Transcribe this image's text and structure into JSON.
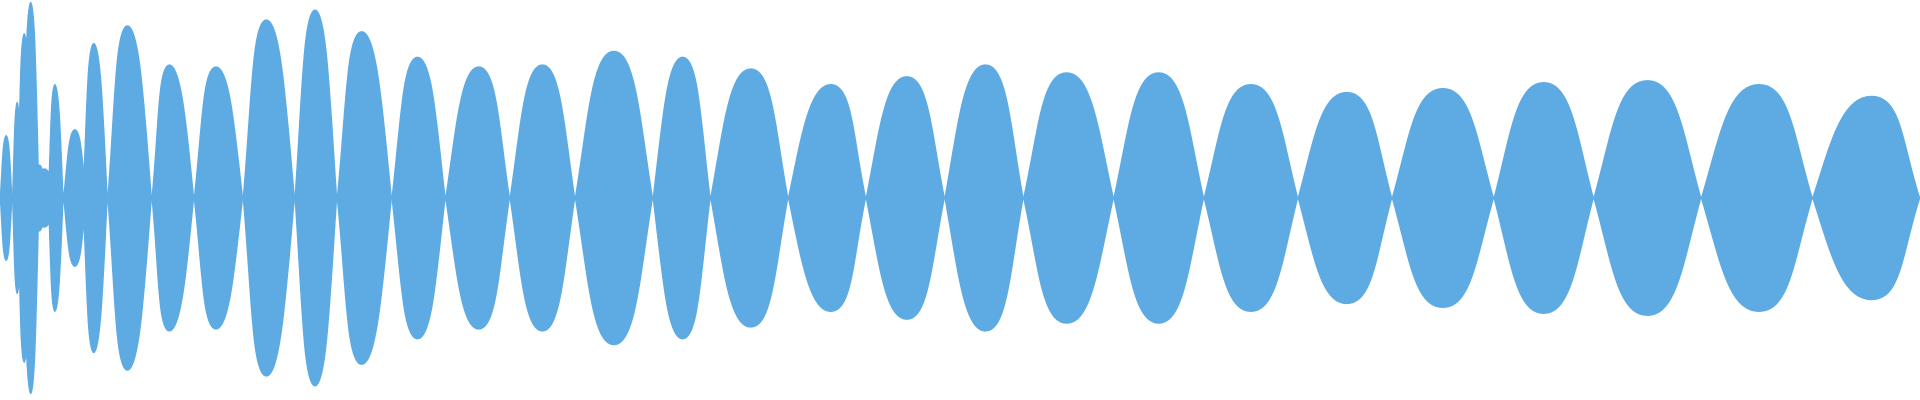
{
  "chart_data": {
    "type": "area",
    "title": "",
    "xlabel": "",
    "ylabel": "",
    "grid": false,
    "legend": "none",
    "ylim": [
      -1,
      1
    ],
    "xlim": [
      0,
      1
    ],
    "fill_color": "#5dabe2",
    "symmetric": true,
    "lobes": [
      {
        "x0": 0.0,
        "x1": 0.0064,
        "amp": 0.32,
        "peak": 0.5
      },
      {
        "x0": 0.0064,
        "x1": 0.0115,
        "amp": 0.49,
        "peak": 0.5
      },
      {
        "x0": 0.0115,
        "x1": 0.0205,
        "amp": 1.0,
        "peak": 0.5
      },
      {
        "x0": 0.0205,
        "x1": 0.019,
        "amp": 0.0,
        "peak": 0.5
      },
      {
        "x0": 0.009,
        "x1": 0.017,
        "amp": 0.84,
        "peak": 0.45
      },
      {
        "x0": 0.017,
        "x1": 0.024,
        "amp": 0.17,
        "peak": 0.5
      },
      {
        "x0": 0.017,
        "x1": 0.029,
        "amp": 0.15,
        "peak": 0.5
      },
      {
        "x0": 0.019,
        "x1": 0.03,
        "amp": 0.08,
        "peak": 0.5
      },
      {
        "x0": 0.025,
        "x1": 0.033,
        "amp": 0.58,
        "peak": 0.45
      },
      {
        "x0": 0.033,
        "x1": 0.045,
        "amp": 0.35,
        "peak": 0.5
      },
      {
        "x0": 0.043,
        "x1": 0.056,
        "amp": 0.79,
        "peak": 0.45
      },
      {
        "x0": 0.056,
        "x1": 0.079,
        "amp": 0.88,
        "peak": 0.45
      },
      {
        "x0": 0.079,
        "x1": 0.101,
        "amp": 0.68,
        "peak": 0.42
      },
      {
        "x0": 0.101,
        "x1": 0.1265,
        "amp": 0.67,
        "peak": 0.45
      },
      {
        "x0": 0.1265,
        "x1": 0.1535,
        "amp": 0.91,
        "peak": 0.45
      },
      {
        "x0": 0.1535,
        "x1": 0.1755,
        "amp": 0.96,
        "peak": 0.48
      },
      {
        "x0": 0.1755,
        "x1": 0.204,
        "amp": 0.85,
        "peak": 0.45
      },
      {
        "x0": 0.204,
        "x1": 0.232,
        "amp": 0.72,
        "peak": 0.48
      },
      {
        "x0": 0.232,
        "x1": 0.2655,
        "amp": 0.67,
        "peak": 0.52
      },
      {
        "x0": 0.2655,
        "x1": 0.2995,
        "amp": 0.68,
        "peak": 0.5
      },
      {
        "x0": 0.2995,
        "x1": 0.34,
        "amp": 0.75,
        "peak": 0.5
      },
      {
        "x0": 0.34,
        "x1": 0.37,
        "amp": 0.72,
        "peak": 0.52
      },
      {
        "x0": 0.37,
        "x1": 0.4105,
        "amp": 0.66,
        "peak": 0.52
      },
      {
        "x0": 0.4105,
        "x1": 0.451,
        "amp": 0.58,
        "peak": 0.55
      },
      {
        "x0": 0.451,
        "x1": 0.492,
        "amp": 0.62,
        "peak": 0.52
      },
      {
        "x0": 0.492,
        "x1": 0.533,
        "amp": 0.68,
        "peak": 0.52
      },
      {
        "x0": 0.533,
        "x1": 0.58,
        "amp": 0.64,
        "peak": 0.48
      },
      {
        "x0": 0.58,
        "x1": 0.627,
        "amp": 0.64,
        "peak": 0.5
      },
      {
        "x0": 0.627,
        "x1": 0.676,
        "amp": 0.58,
        "peak": 0.5
      },
      {
        "x0": 0.676,
        "x1": 0.725,
        "amp": 0.54,
        "peak": 0.52
      },
      {
        "x0": 0.725,
        "x1": 0.778,
        "amp": 0.56,
        "peak": 0.5
      },
      {
        "x0": 0.778,
        "x1": 0.83,
        "amp": 0.59,
        "peak": 0.5
      },
      {
        "x0": 0.83,
        "x1": 0.886,
        "amp": 0.6,
        "peak": 0.5
      },
      {
        "x0": 0.886,
        "x1": 0.944,
        "amp": 0.58,
        "peak": 0.52
      },
      {
        "x0": 0.944,
        "x1": 1.0,
        "amp": 0.52,
        "peak": 0.55
      }
    ]
  }
}
